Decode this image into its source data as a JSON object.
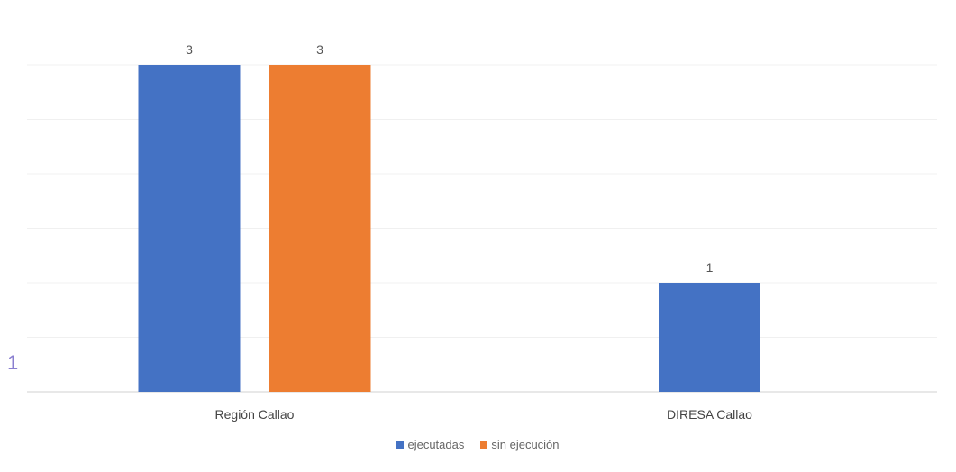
{
  "chart_data": {
    "type": "bar",
    "categories": [
      "Región Callao",
      "DIRESA Callao"
    ],
    "series": [
      {
        "name": "ejecutadas",
        "values": [
          3,
          1
        ],
        "color": "#4472C4"
      },
      {
        "name": "sin ejecución",
        "values": [
          3,
          null
        ],
        "color": "#ED7D31"
      }
    ],
    "ylim": [
      0,
      3
    ],
    "grid": true,
    "legend": "bottom",
    "title": "",
    "xlabel": "",
    "ylabel": ""
  },
  "annotation": {
    "side_mark": "1"
  }
}
